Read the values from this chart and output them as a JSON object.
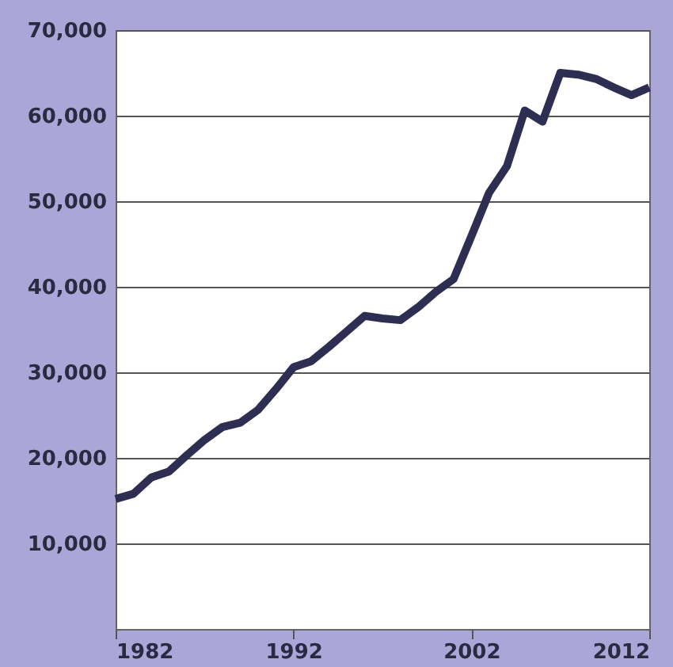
{
  "chart_data": {
    "type": "line",
    "x": [
      1982,
      1983,
      1984,
      1985,
      1986,
      1987,
      1988,
      1989,
      1990,
      1991,
      1992,
      1993,
      1994,
      1995,
      1996,
      1997,
      1998,
      1999,
      2000,
      2001,
      2002,
      2003,
      2004,
      2005,
      2006,
      2007,
      2008,
      2009,
      2010,
      2011,
      2012
    ],
    "values": [
      15200,
      15800,
      17700,
      18400,
      20300,
      22100,
      23600,
      24100,
      25600,
      28000,
      30600,
      31300,
      33000,
      34800,
      36600,
      36300,
      36100,
      37600,
      39400,
      40900,
      45900,
      51000,
      54100,
      60600,
      59300,
      65000,
      64800,
      64300,
      63300,
      62400,
      63300
    ],
    "color": "#2e2e52",
    "xlim": [
      1982,
      2012
    ],
    "xticks": [
      1982,
      1992,
      2002,
      2012
    ],
    "ylim": [
      0,
      70000
    ],
    "yticks": [
      {
        "value": 10000,
        "label": "10,000"
      },
      {
        "value": 20000,
        "label": "20,000"
      },
      {
        "value": 30000,
        "label": "30,000"
      },
      {
        "value": 40000,
        "label": "40,000"
      },
      {
        "value": 50000,
        "label": "50,000"
      },
      {
        "value": 60000,
        "label": "60,000"
      },
      {
        "value": 70000,
        "label": "70,000"
      }
    ],
    "grid": "y",
    "line_style": "solid",
    "marker": "none"
  }
}
